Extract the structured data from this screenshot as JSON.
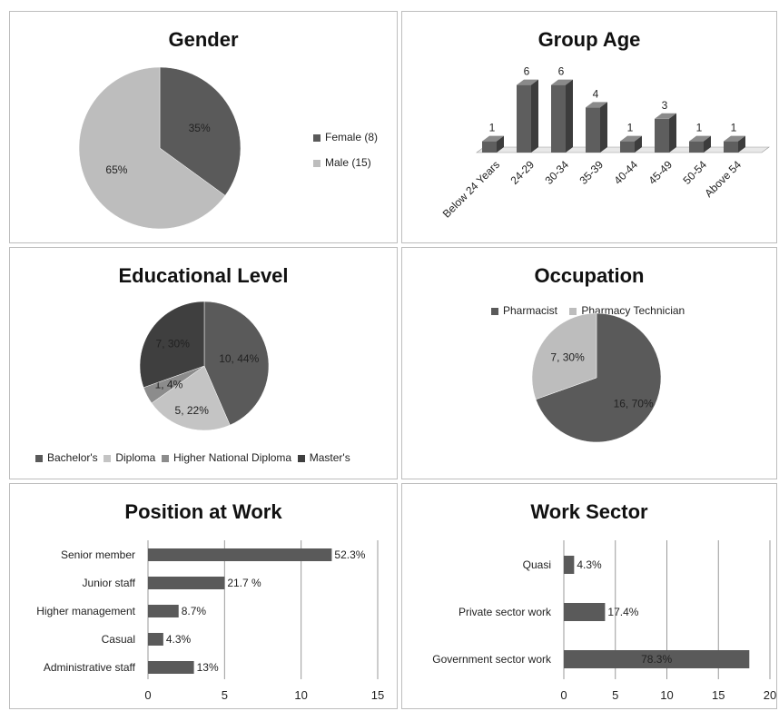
{
  "colors": {
    "dark": "#5a5a5a",
    "darker": "#3f3f3f",
    "light": "#bdbdbd",
    "mid": "#8c8c8c",
    "grid": "#9a9a9a"
  },
  "chart_data": [
    {
      "id": "gender",
      "type": "pie",
      "title": "Gender",
      "slices": [
        {
          "label": "Female (8)",
          "value": 35,
          "text": "35%",
          "color": "#5a5a5a"
        },
        {
          "label": "Male (15)",
          "value": 65,
          "text": "65%",
          "color": "#bdbdbd"
        }
      ],
      "legend": "right"
    },
    {
      "id": "age",
      "type": "bar",
      "title": "Group Age",
      "categories": [
        "Below 24 Years",
        "24-29",
        "30-34",
        "35-39",
        "40-44",
        "45-49",
        "50-54",
        "Above 54"
      ],
      "values": [
        1,
        6,
        6,
        4,
        1,
        3,
        1,
        1
      ]
    },
    {
      "id": "education",
      "type": "pie",
      "title": "Educational Level",
      "slices": [
        {
          "label": "Bachelor's",
          "value": 10,
          "text": "10, 44%",
          "color": "#5a5a5a"
        },
        {
          "label": "Diploma",
          "value": 5,
          "text": "5, 22%",
          "color": "#c4c4c4"
        },
        {
          "label": "Higher National Diploma",
          "value": 1,
          "text": "1, 4%",
          "color": "#8c8c8c"
        },
        {
          "label": "Master's",
          "value": 7,
          "text": "7, 30%",
          "color": "#3f3f3f"
        }
      ],
      "legend": "bottom"
    },
    {
      "id": "occupation",
      "type": "pie",
      "title": "Occupation",
      "slices": [
        {
          "label": "Pharmacist",
          "value": 16,
          "text": "16, 70%",
          "color": "#5a5a5a"
        },
        {
          "label": "Pharmacy Technician",
          "value": 7,
          "text": "7, 30%",
          "color": "#bdbdbd"
        }
      ],
      "legend": "top"
    },
    {
      "id": "position",
      "type": "bar",
      "orientation": "horizontal",
      "title": "Position at Work",
      "categories": [
        "Senior member",
        "Junior staff",
        "Higher management",
        "Casual",
        "Administrative staff"
      ],
      "values": [
        12,
        5,
        2,
        1,
        3
      ],
      "labels": [
        "52.3%",
        "21.7 %",
        "8.7%",
        "4.3%",
        "13%"
      ],
      "xlim": [
        0,
        15
      ],
      "ticks": [
        "0",
        "5",
        "10",
        "15"
      ],
      "grid": true
    },
    {
      "id": "sector",
      "type": "bar",
      "orientation": "horizontal",
      "title": "Work Sector",
      "categories": [
        "Quasi",
        "Private sector work",
        "Government sector work"
      ],
      "values": [
        1,
        4,
        18
      ],
      "labels": [
        "4.3%",
        "17.4%",
        "78.3%"
      ],
      "xlim": [
        0,
        20
      ],
      "ticks": [
        "0",
        "5",
        "10",
        "15",
        "20"
      ],
      "grid": true
    }
  ]
}
